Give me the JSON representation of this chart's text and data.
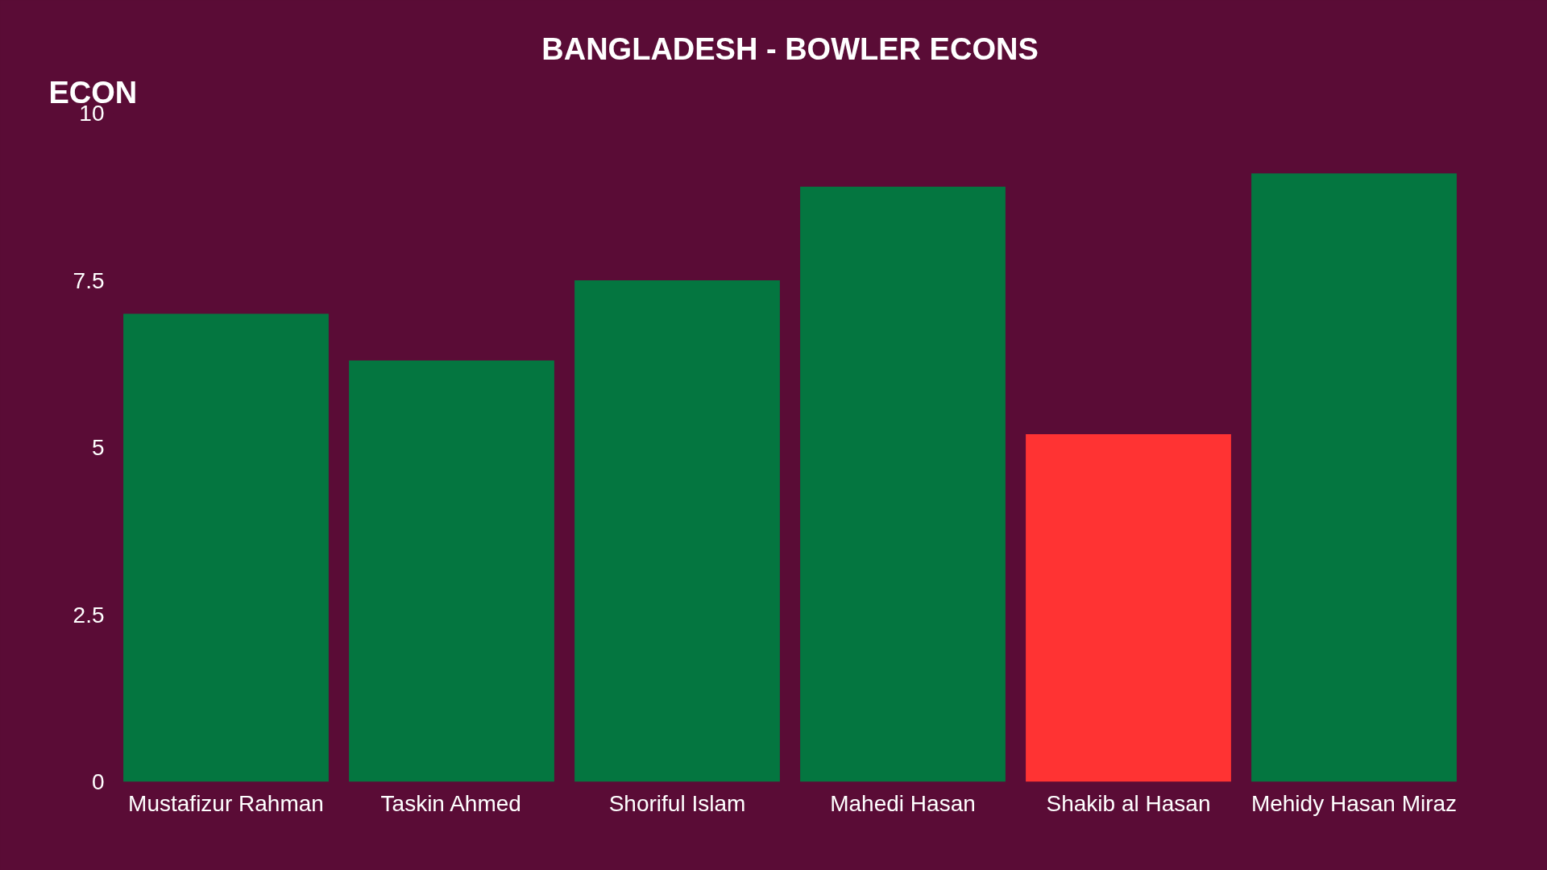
{
  "chart_data": {
    "type": "bar",
    "title": "BANGLADESH - BOWLER ECONS",
    "ylabel": "ECON",
    "categories": [
      "Mustafizur Rahman",
      "Taskin Ahmed",
      "Shoriful Islam",
      "Mahedi Hasan",
      "Shakib al Hasan",
      "Mehidy Hasan Miraz"
    ],
    "values": [
      7.0,
      6.3,
      7.5,
      8.9,
      5.2,
      9.1
    ],
    "colors": [
      "#047640",
      "#047640",
      "#047640",
      "#047640",
      "#ff3333",
      "#047640"
    ],
    "ylim": [
      0,
      10
    ],
    "yticks": [
      0,
      {
        "value": 2.5,
        "label": "2.5"
      },
      5,
      {
        "value": 7.5,
        "label": "7.5"
      },
      10
    ],
    "grid": false
  }
}
